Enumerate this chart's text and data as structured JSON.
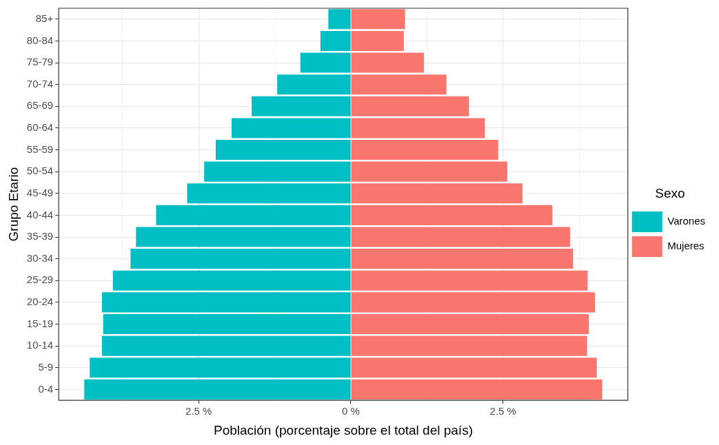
{
  "chart_data": {
    "type": "bar",
    "orientation": "horizontal",
    "stacked": true,
    "xlabel": "Población (porcentaje sobre el total del país)",
    "ylabel": "Grupo Etario",
    "legend_title": "Sexo",
    "legend": "right",
    "grid": true,
    "categories": [
      "85+",
      "80-84",
      "75-79",
      "70-74",
      "65-69",
      "60-64",
      "55-59",
      "50-54",
      "45-49",
      "40-44",
      "35-39",
      "30-34",
      "25-29",
      "20-24",
      "15-19",
      "10-14",
      "5-9",
      "0-4"
    ],
    "series": [
      {
        "name": "Varones",
        "color": "#00bfc4",
        "values": [
          -0.37,
          -0.5,
          -0.83,
          -1.21,
          -1.63,
          -1.96,
          -2.22,
          -2.41,
          -2.69,
          -3.2,
          -3.53,
          -3.62,
          -3.91,
          -4.09,
          -4.07,
          -4.09,
          -4.29,
          -4.38
        ]
      },
      {
        "name": "Mujeres",
        "color": "#f8766d",
        "values": [
          0.89,
          0.87,
          1.2,
          1.57,
          1.94,
          2.2,
          2.42,
          2.57,
          2.82,
          3.31,
          3.6,
          3.65,
          3.89,
          4.01,
          3.91,
          3.88,
          4.04,
          4.13
        ]
      }
    ],
    "xlim": [
      -4.8,
      4.55
    ],
    "xticks": [
      {
        "value": -3.75,
        "label": null
      },
      {
        "value": -2.5,
        "label": "2.5 %"
      },
      {
        "value": -1.25,
        "label": null
      },
      {
        "value": 0,
        "label": "0 %"
      },
      {
        "value": 1.25,
        "label": null
      },
      {
        "value": 2.5,
        "label": "2.5 %"
      },
      {
        "value": 3.75,
        "label": null
      }
    ]
  }
}
